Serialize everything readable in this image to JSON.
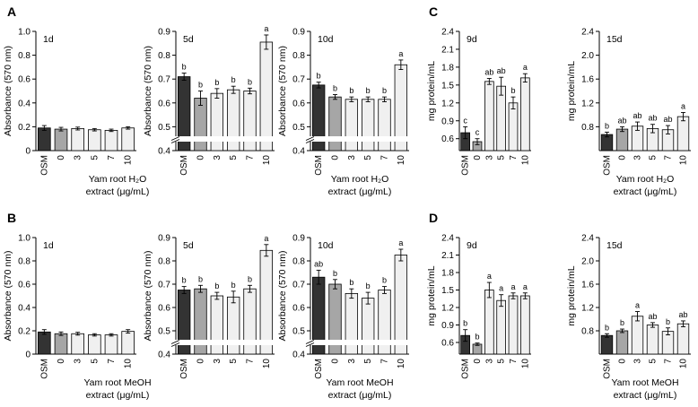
{
  "colors": {
    "bar_osm": "#333333",
    "bar_control": "#a6a6a6",
    "bar_treat": "#f0f0f0",
    "stroke": "#000000",
    "text": "#000000"
  },
  "chart_data": [
    {
      "id": "A-1d",
      "panel_letter": "A",
      "type": "bar",
      "title": "1d",
      "ylabel": "Absorbance (570 nm)",
      "xlabel": "Yam root H₂O extract (μg/mL)",
      "xlabel_lines": [
        "Yam root H₂O",
        "extract (μg/mL)"
      ],
      "categories": [
        "OSM",
        "0",
        "3",
        "5",
        "7",
        "10"
      ],
      "values": [
        0.19,
        0.18,
        0.185,
        0.175,
        0.17,
        0.19
      ],
      "errors": [
        0.02,
        0.015,
        0.012,
        0.01,
        0.01,
        0.01
      ],
      "letters": [],
      "ylim": [
        0,
        1.0
      ],
      "yticks": [
        "0",
        "0.2",
        "0.4",
        "0.6",
        "0.8",
        "1.0"
      ],
      "ytick_values": [
        0,
        0.2,
        0.4,
        0.6,
        0.8,
        1.0
      ],
      "axis_break": false
    },
    {
      "id": "A-5d",
      "type": "bar",
      "title": "5d",
      "ylabel": "Absorbance (570 nm)",
      "xlabel": "Yam root H₂O extract (μg/mL)",
      "categories": [
        "OSM",
        "0",
        "3",
        "5",
        "7",
        "10"
      ],
      "values": [
        0.71,
        0.62,
        0.64,
        0.655,
        0.65,
        0.855
      ],
      "errors": [
        0.015,
        0.03,
        0.02,
        0.015,
        0.012,
        0.03
      ],
      "letters": [
        "b",
        "b",
        "b",
        "b",
        "b",
        "a"
      ],
      "ylim": [
        0.4,
        0.9
      ],
      "yticks": [
        "0.4",
        "0.5",
        "0.6",
        "0.7",
        "0.8",
        "0.9"
      ],
      "ytick_values": [
        0.4,
        0.5,
        0.6,
        0.7,
        0.8,
        0.9
      ],
      "axis_break": true
    },
    {
      "id": "A-10d",
      "type": "bar",
      "title": "10d",
      "ylabel": "Absorbance (570 nm)",
      "xlabel": "Yam root H₂O extract (μg/mL)",
      "xlabel_lines": [
        "Yam root H₂O",
        "extract (μg/mL)"
      ],
      "categories": [
        "OSM",
        "0",
        "3",
        "5",
        "7",
        "10"
      ],
      "values": [
        0.675,
        0.625,
        0.615,
        0.615,
        0.615,
        0.76
      ],
      "errors": [
        0.012,
        0.01,
        0.01,
        0.01,
        0.01,
        0.02
      ],
      "letters": [
        "b",
        "b",
        "b",
        "b",
        "b",
        "a"
      ],
      "ylim": [
        0.4,
        0.9
      ],
      "yticks": [
        "0.4",
        "0.5",
        "0.6",
        "0.7",
        "0.8",
        "0.9"
      ],
      "ytick_values": [
        0.4,
        0.5,
        0.6,
        0.7,
        0.8,
        0.9
      ],
      "axis_break": true
    },
    {
      "id": "C-9d",
      "panel_letter": "C",
      "type": "bar",
      "title": "9d",
      "ylabel": "mg protein/mL",
      "xlabel": "Yam root H₂O extract (μg/mL)",
      "categories": [
        "OSM",
        "0",
        "3",
        "5",
        "7",
        "10"
      ],
      "values": [
        0.7,
        0.55,
        1.56,
        1.48,
        1.2,
        1.62
      ],
      "errors": [
        0.1,
        0.05,
        0.05,
        0.15,
        0.1,
        0.07
      ],
      "letters": [
        "c",
        "c",
        "ab",
        "ab",
        "b",
        "a"
      ],
      "ylim": [
        0.4,
        2.4
      ],
      "yticks": [
        "0.6",
        "0.9",
        "1.2",
        "1.5",
        "1.8",
        "2.1",
        "2.4"
      ],
      "ytick_values": [
        0.6,
        0.9,
        1.2,
        1.5,
        1.8,
        2.1,
        2.4
      ],
      "axis_break": false
    },
    {
      "id": "C-15d",
      "type": "bar",
      "title": "15d",
      "ylabel": "mg protein/mL",
      "xlabel": "Yam root H₂O extract (μg/mL)",
      "xlabel_lines": [
        "Yam root H₂O",
        "extract (μg/mL)"
      ],
      "categories": [
        "OSM",
        "0",
        "3",
        "5",
        "7",
        "10"
      ],
      "values": [
        0.67,
        0.76,
        0.81,
        0.77,
        0.75,
        0.97
      ],
      "errors": [
        0.04,
        0.04,
        0.07,
        0.07,
        0.07,
        0.07
      ],
      "letters": [
        "b",
        "ab",
        "ab",
        "ab",
        "ab",
        "a"
      ],
      "ylim": [
        0.4,
        2.4
      ],
      "yticks": [
        "0.8",
        "1.2",
        "1.6",
        "2.0",
        "2.4"
      ],
      "ytick_values": [
        0.8,
        1.2,
        1.6,
        2.0,
        2.4
      ],
      "axis_break": false
    },
    {
      "id": "B-1d",
      "panel_letter": "B",
      "type": "bar",
      "title": "1d",
      "ylabel": "Absorbance (570 nm)",
      "xlabel": "Yam root MeOH extract (μg/mL)",
      "xlabel_lines": [
        "Yam root MeOH",
        "extract (μg/mL)"
      ],
      "categories": [
        "OSM",
        "0",
        "3",
        "5",
        "7",
        "10"
      ],
      "values": [
        0.19,
        0.175,
        0.175,
        0.165,
        0.165,
        0.195
      ],
      "errors": [
        0.02,
        0.015,
        0.012,
        0.01,
        0.01,
        0.015
      ],
      "letters": [],
      "ylim": [
        0,
        1.0
      ],
      "yticks": [
        "0",
        "0.2",
        "0.4",
        "0.6",
        "0.8",
        "1.0"
      ],
      "ytick_values": [
        0,
        0.2,
        0.4,
        0.6,
        0.8,
        1.0
      ],
      "axis_break": false
    },
    {
      "id": "B-5d",
      "type": "bar",
      "title": "5d",
      "ylabel": "Absorbance (570 nm)",
      "xlabel": "Yam root MeOH extract (μg/mL)",
      "categories": [
        "OSM",
        "0",
        "3",
        "5",
        "7",
        "10"
      ],
      "values": [
        0.675,
        0.68,
        0.65,
        0.645,
        0.68,
        0.845
      ],
      "errors": [
        0.015,
        0.015,
        0.015,
        0.025,
        0.015,
        0.025
      ],
      "letters": [
        "b",
        "b",
        "b",
        "b",
        "b",
        "a"
      ],
      "ylim": [
        0.4,
        0.9
      ],
      "yticks": [
        "0.4",
        "0.5",
        "0.6",
        "0.7",
        "0.8",
        "0.9"
      ],
      "ytick_values": [
        0.4,
        0.5,
        0.6,
        0.7,
        0.8,
        0.9
      ],
      "axis_break": true
    },
    {
      "id": "B-10d",
      "type": "bar",
      "title": "10d",
      "ylabel": "Absorbance (570 nm)",
      "xlabel": "Yam root MeOH extract (μg/mL)",
      "xlabel_lines": [
        "Yam root MeOH",
        "extract (μg/mL)"
      ],
      "categories": [
        "OSM",
        "0",
        "3",
        "5",
        "7",
        "10"
      ],
      "values": [
        0.73,
        0.7,
        0.66,
        0.64,
        0.675,
        0.825
      ],
      "errors": [
        0.03,
        0.02,
        0.02,
        0.025,
        0.015,
        0.025
      ],
      "letters": [
        "ab",
        "b",
        "b",
        "b",
        "b",
        "a"
      ],
      "ylim": [
        0.4,
        0.9
      ],
      "yticks": [
        "0.4",
        "0.5",
        "0.6",
        "0.7",
        "0.8",
        "0.9"
      ],
      "ytick_values": [
        0.4,
        0.5,
        0.6,
        0.7,
        0.8,
        0.9
      ],
      "axis_break": true
    },
    {
      "id": "D-9d",
      "panel_letter": "D",
      "type": "bar",
      "title": "9d",
      "ylabel": "mg protein/mL",
      "xlabel": "Yam root MeOH extract (μg/mL)",
      "categories": [
        "OSM",
        "0",
        "3",
        "5",
        "7",
        "10"
      ],
      "values": [
        0.72,
        0.57,
        1.5,
        1.32,
        1.4,
        1.4
      ],
      "errors": [
        0.1,
        0.02,
        0.13,
        0.1,
        0.05,
        0.05
      ],
      "letters": [
        "b",
        "b",
        "a",
        "a",
        "a",
        "a"
      ],
      "ylim": [
        0.4,
        2.4
      ],
      "yticks": [
        "0.6",
        "0.9",
        "1.2",
        "1.5",
        "1.8",
        "2.1",
        "2.4"
      ],
      "ytick_values": [
        0.6,
        0.9,
        1.2,
        1.5,
        1.8,
        2.1,
        2.4
      ],
      "axis_break": false
    },
    {
      "id": "D-15d",
      "type": "bar",
      "title": "15d",
      "ylabel": "mg protein/mL",
      "xlabel": "Yam root MeOH extract (μg/mL)",
      "xlabel_lines": [
        "Yam root MeOH",
        "extract (μg/mL)"
      ],
      "categories": [
        "OSM",
        "0",
        "3",
        "5",
        "7",
        "10"
      ],
      "values": [
        0.72,
        0.8,
        1.05,
        0.9,
        0.79,
        0.92
      ],
      "errors": [
        0.03,
        0.03,
        0.08,
        0.04,
        0.06,
        0.05
      ],
      "letters": [
        "b",
        "b",
        "a",
        "ab",
        "b",
        "ab"
      ],
      "ylim": [
        0.4,
        2.4
      ],
      "yticks": [
        "0.8",
        "1.2",
        "1.6",
        "2.0",
        "2.4"
      ],
      "ytick_values": [
        0.8,
        1.2,
        1.6,
        2.0,
        2.4
      ],
      "axis_break": false
    }
  ]
}
